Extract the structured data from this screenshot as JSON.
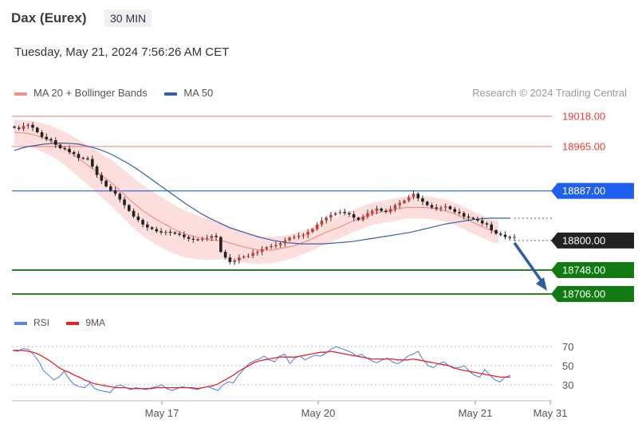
{
  "header": {
    "instrument": "Dax (Eurex)",
    "timeframe": "30 MIN",
    "datetime": "Tuesday, May 21, 2024 7:56:26 AM CET"
  },
  "legend": {
    "ma20_label": "MA 20 + Bollinger Bands",
    "ma50_label": "MA 50",
    "ma20_color": "#f58e86",
    "ma50_color": "#3560a8",
    "credit": "Research © 2024 Trading Central"
  },
  "rsi_legend": {
    "rsi_label": "RSI",
    "ma9_label": "9MA",
    "rsi_color": "#5b86e5",
    "ma9_color": "#e5262a"
  },
  "chart_data": {
    "type": "candlestick",
    "x_ticks": [
      "May 17",
      "May 20",
      "May 21",
      "May 31"
    ],
    "price_levels": [
      {
        "value": 19018.0,
        "label": "19018.00",
        "kind": "resistance",
        "color": "#ef3b33"
      },
      {
        "value": 18965.0,
        "label": "18965.00",
        "kind": "resistance",
        "color": "#ef3b33"
      },
      {
        "value": 18887.0,
        "label": "18887.00",
        "kind": "pivot",
        "color": "#1f5ff0"
      },
      {
        "value": 18800.0,
        "label": "18800.00",
        "kind": "last",
        "color": "#222222"
      },
      {
        "value": 18748.0,
        "label": "18748.00",
        "kind": "support",
        "color": "#117a11"
      },
      {
        "value": 18706.0,
        "label": "18706.00",
        "kind": "support",
        "color": "#117a11"
      }
    ],
    "forecast_arrow": {
      "from": 18800,
      "to": 18706,
      "color": "#2f5d9e"
    },
    "close": [
      18998,
      18996,
      19001,
      19003,
      18998,
      18990,
      18982,
      18978,
      18976,
      18968,
      18962,
      18961,
      18955,
      18952,
      18945,
      18944,
      18943,
      18930,
      18915,
      18905,
      18895,
      18888,
      18882,
      18872,
      18862,
      18852,
      18842,
      18836,
      18828,
      18823,
      18820,
      18816,
      18814,
      18815,
      18814,
      18812,
      18810,
      18806,
      18803,
      18802,
      18801,
      18803,
      18804,
      18808,
      18806,
      18780,
      18770,
      18762,
      18765,
      18770,
      18772,
      18773,
      18778,
      18780,
      18785,
      18788,
      18790,
      18792,
      18795,
      18800,
      18805,
      18806,
      18808,
      18810,
      18815,
      18820,
      18828,
      18835,
      18840,
      18845,
      18848,
      18850,
      18848,
      18846,
      18840,
      18836,
      18842,
      18848,
      18852,
      18856,
      18852,
      18850,
      18855,
      18862,
      18866,
      18870,
      18876,
      18882,
      18874,
      18868,
      18862,
      18858,
      18856,
      18858,
      18860,
      18855,
      18850,
      18848,
      18842,
      18840,
      18838,
      18835,
      18830,
      18828,
      18818,
      18812,
      18810,
      18806,
      18805,
      18806
    ],
    "ma20": [
      18990,
      18989,
      18988,
      18986,
      18983,
      18979,
      18975,
      18969,
      18963,
      18956,
      18948,
      18940,
      18932,
      18924,
      18916,
      18908,
      18900,
      18890,
      18880,
      18870,
      18861,
      18852,
      18845,
      18838,
      18832,
      18826,
      18820,
      18815,
      18811,
      18808,
      18805,
      18803,
      18801,
      18800,
      18799,
      18796,
      18793,
      18790,
      18787,
      18785,
      18783,
      18783,
      18783,
      18785,
      18787,
      18789,
      18792,
      18796,
      18800,
      18805,
      18810,
      18815,
      18819,
      18823,
      18828,
      18833,
      18837,
      18841,
      18845,
      18848,
      18850,
      18852,
      18854,
      18856,
      18858,
      18858,
      18858,
      18858,
      18857,
      18855,
      18853,
      18850,
      18846,
      18841,
      18836,
      18831,
      18826,
      18821,
      18817,
      18814
    ],
    "ma50": [
      18958,
      18962,
      18965,
      18967,
      18969,
      18970,
      18971,
      18971,
      18970,
      18969,
      18966,
      18963,
      18959,
      18954,
      18948,
      18941,
      18934,
      18926,
      18917,
      18908,
      18899,
      18890,
      18881,
      18872,
      18863,
      18855,
      18847,
      18840,
      18834,
      18828,
      18822,
      18818,
      18814,
      18810,
      18806,
      18803,
      18800,
      18798,
      18796,
      18795,
      18794,
      18794,
      18794,
      18794,
      18795,
      18796,
      18797,
      18798,
      18800,
      18802,
      18804,
      18806,
      18808,
      18810,
      18812,
      18814,
      18817,
      18820,
      18823,
      18826,
      18829,
      18831,
      18833,
      18835,
      18837,
      18838,
      18839,
      18839,
      18839,
      18839
    ],
    "rsi": {
      "ticks": [
        30,
        50,
        70
      ],
      "rsi": [
        66,
        65,
        68,
        67,
        62,
        55,
        45,
        40,
        35,
        38,
        44,
        36,
        30,
        28,
        27,
        32,
        26,
        24,
        23,
        22,
        28,
        30,
        27,
        25,
        27,
        26,
        25,
        27,
        28,
        30,
        26,
        24,
        26,
        28,
        27,
        26,
        25,
        27,
        28,
        26,
        24,
        30,
        33,
        32,
        40,
        46,
        52,
        55,
        57,
        60,
        56,
        54,
        60,
        62,
        52,
        58,
        60,
        56,
        59,
        61,
        60,
        63,
        67,
        70,
        68,
        66,
        64,
        60,
        62,
        58,
        55,
        53,
        56,
        58,
        54,
        52,
        55,
        60,
        62,
        65,
        56,
        50,
        48,
        52,
        54,
        50,
        47,
        48,
        50,
        44,
        40,
        38,
        46,
        40,
        35,
        33,
        38,
        40
      ],
      "ma9": [
        66,
        66,
        66,
        65,
        64,
        62,
        59,
        56,
        52,
        48,
        45,
        43,
        40,
        38,
        35,
        33,
        31,
        30,
        29,
        28,
        27,
        27,
        27,
        26,
        26,
        26,
        26,
        26,
        27,
        27,
        27,
        27,
        27,
        27,
        27,
        27,
        26,
        27,
        28,
        29,
        31,
        34,
        37,
        40,
        44,
        47,
        50,
        53,
        55,
        56,
        57,
        58,
        59,
        59,
        59,
        59,
        60,
        61,
        62,
        63,
        64,
        64,
        65,
        64,
        63,
        62,
        61,
        60,
        59,
        58,
        57,
        57,
        57,
        57,
        57,
        56,
        56,
        56,
        57,
        56,
        55,
        54,
        53,
        52,
        51,
        50,
        48,
        46,
        45,
        44,
        43,
        42,
        41,
        40,
        39,
        38,
        38,
        38
      ]
    }
  }
}
